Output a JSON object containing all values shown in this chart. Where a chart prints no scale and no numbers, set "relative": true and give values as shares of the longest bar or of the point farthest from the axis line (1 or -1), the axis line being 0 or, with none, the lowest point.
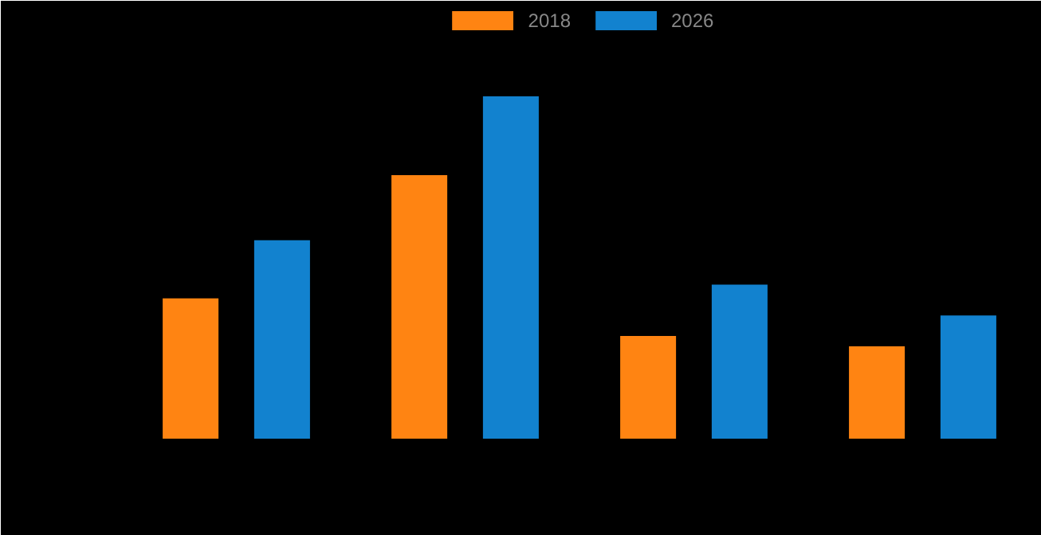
{
  "chart_data": {
    "type": "bar",
    "relative": true,
    "categories": [
      null,
      null,
      null,
      null
    ],
    "legend": "top",
    "series": [
      {
        "name": "2018",
        "color": "#ff8412",
        "values": [
          0.41,
          0.77,
          0.3,
          0.27
        ]
      },
      {
        "name": "2026",
        "color": "#1282cf",
        "values": [
          0.58,
          1,
          0.45,
          0.36
        ]
      }
    ]
  }
}
